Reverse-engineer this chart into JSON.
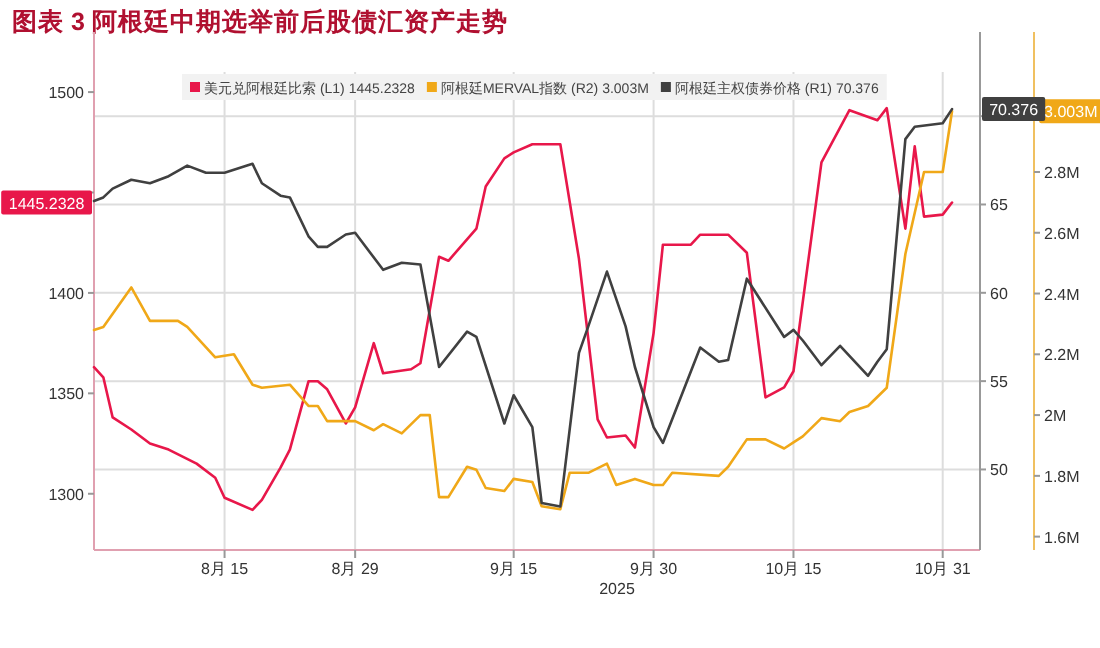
{
  "chart_data": {
    "type": "line",
    "title": "图表 3  阿根廷中期选举前后股债汇资产走势",
    "xlabel": "2025",
    "xlim": [
      "2025-08-01",
      "2025-11-04"
    ],
    "xticks": [
      {
        "value": "2025-08-15",
        "label": "8月 15"
      },
      {
        "value": "2025-08-29",
        "label": "8月 29"
      },
      {
        "value": "2025-09-15",
        "label": "9月 15"
      },
      {
        "value": "2025-09-30",
        "label": "9月 30"
      },
      {
        "value": "2025-10-15",
        "label": "10月 15"
      },
      {
        "value": "2025-10-31",
        "label": "10月 31"
      }
    ],
    "ylim": [
      1272,
      1510
    ],
    "yticks": [
      1300,
      1350,
      1400,
      {
        "value": 1450,
        "label": null
      },
      1500
    ],
    "y2lim": [
      45.44,
      72.5
    ],
    "y2ticks": [
      50,
      55,
      60,
      65,
      {
        "value": 70,
        "label": null
      }
    ],
    "y3lim": [
      1.556,
      3.129
    ],
    "y3ticks": [
      {
        "value": 1.6,
        "label": "1.6M"
      },
      {
        "value": 1.8,
        "label": "1.8M"
      },
      {
        "value": 2.0,
        "label": "2M"
      },
      {
        "value": 2.2,
        "label": "2.2M"
      },
      {
        "value": 2.4,
        "label": "2.4M"
      },
      {
        "value": 2.6,
        "label": "2.6M"
      },
      {
        "value": 2.8,
        "label": "2.8M"
      }
    ],
    "grid": true,
    "legend": "top",
    "annotations": [
      "1445.2328",
      "3.003M",
      "70.376"
    ],
    "line_style": "solid",
    "marker": "none",
    "series": [
      {
        "name": "美元兑阿根廷比索 (L1) 1445.2328",
        "color": "#e8174a",
        "axis": "y",
        "x": [
          "2025-08-01",
          "2025-08-02",
          "2025-08-03",
          "2025-08-05",
          "2025-08-07",
          "2025-08-09",
          "2025-08-12",
          "2025-08-14",
          "2025-08-15",
          "2025-08-18",
          "2025-08-19",
          "2025-08-21",
          "2025-08-22",
          "2025-08-24",
          "2025-08-25",
          "2025-08-26",
          "2025-08-28",
          "2025-08-29",
          "2025-08-31",
          "2025-09-01",
          "2025-09-04",
          "2025-09-05",
          "2025-09-07",
          "2025-09-08",
          "2025-09-11",
          "2025-09-12",
          "2025-09-14",
          "2025-09-15",
          "2025-09-17",
          "2025-09-20",
          "2025-09-22",
          "2025-09-24",
          "2025-09-25",
          "2025-09-27",
          "2025-09-28",
          "2025-09-30",
          "2025-10-01",
          "2025-10-04",
          "2025-10-05",
          "2025-10-08",
          "2025-10-10",
          "2025-10-12",
          "2025-10-14",
          "2025-10-15",
          "2025-10-18",
          "2025-10-21",
          "2025-10-24",
          "2025-10-25",
          "2025-10-27",
          "2025-10-28",
          "2025-10-29",
          "2025-10-31",
          "2025-11-01"
        ],
        "values": [
          1363,
          1358,
          1338,
          1332,
          1325,
          1322,
          1315,
          1308,
          1298,
          1292,
          1297,
          1313,
          1322,
          1356,
          1356,
          1352,
          1335,
          1343,
          1375,
          1360,
          1362,
          1365,
          1418,
          1416,
          1432,
          1453,
          1467,
          1470,
          1474,
          1474,
          1417,
          1337,
          1328,
          1329,
          1323,
          1380,
          1424,
          1424,
          1429,
          1429,
          1420,
          1348,
          1353,
          1361,
          1465,
          1491,
          1486,
          1492,
          1432,
          1473,
          1438,
          1439,
          1445
        ]
      },
      {
        "name": "阿根廷MERVAL指数 (R2) 3.003M",
        "color": "#f0a818",
        "axis": "y3",
        "x": [
          "2025-08-01",
          "2025-08-02",
          "2025-08-05",
          "2025-08-07",
          "2025-08-10",
          "2025-08-11",
          "2025-08-14",
          "2025-08-16",
          "2025-08-18",
          "2025-08-19",
          "2025-08-22",
          "2025-08-24",
          "2025-08-25",
          "2025-08-26",
          "2025-08-29",
          "2025-08-31",
          "2025-09-01",
          "2025-09-03",
          "2025-09-05",
          "2025-09-06",
          "2025-09-07",
          "2025-09-08",
          "2025-09-10",
          "2025-09-11",
          "2025-09-12",
          "2025-09-14",
          "2025-09-15",
          "2025-09-17",
          "2025-09-18",
          "2025-09-20",
          "2025-09-21",
          "2025-09-23",
          "2025-09-25",
          "2025-09-26",
          "2025-09-28",
          "2025-09-30",
          "2025-10-01",
          "2025-10-02",
          "2025-10-07",
          "2025-10-08",
          "2025-10-10",
          "2025-10-12",
          "2025-10-14",
          "2025-10-15",
          "2025-10-16",
          "2025-10-18",
          "2025-10-20",
          "2025-10-21",
          "2025-10-23",
          "2025-10-25",
          "2025-10-27",
          "2025-10-29",
          "2025-10-31",
          "2025-11-01"
        ],
        "values": [
          2.28,
          2.29,
          2.42,
          2.31,
          2.31,
          2.29,
          2.19,
          2.2,
          2.1,
          2.09,
          2.1,
          2.03,
          2.03,
          1.98,
          1.98,
          1.95,
          1.97,
          1.94,
          2.0,
          2.0,
          1.73,
          1.73,
          1.83,
          1.82,
          1.76,
          1.75,
          1.79,
          1.78,
          1.7,
          1.69,
          1.81,
          1.81,
          1.84,
          1.77,
          1.79,
          1.77,
          1.77,
          1.81,
          1.8,
          1.83,
          1.92,
          1.92,
          1.89,
          1.91,
          1.93,
          1.99,
          1.98,
          2.01,
          2.03,
          2.09,
          2.53,
          2.8,
          2.8,
          3.0
        ]
      },
      {
        "name": "阿根廷主权债券价格 (R1) 70.376",
        "color": "#404040",
        "axis": "y2",
        "x": [
          "2025-08-01",
          "2025-08-02",
          "2025-08-03",
          "2025-08-05",
          "2025-08-07",
          "2025-08-09",
          "2025-08-11",
          "2025-08-13",
          "2025-08-15",
          "2025-08-18",
          "2025-08-19",
          "2025-08-21",
          "2025-08-22",
          "2025-08-24",
          "2025-08-25",
          "2025-08-26",
          "2025-08-28",
          "2025-08-29",
          "2025-09-01",
          "2025-09-03",
          "2025-09-05",
          "2025-09-07",
          "2025-09-10",
          "2025-09-11",
          "2025-09-14",
          "2025-09-15",
          "2025-09-17",
          "2025-09-18",
          "2025-09-20",
          "2025-09-22",
          "2025-09-23",
          "2025-09-25",
          "2025-09-27",
          "2025-09-28",
          "2025-09-30",
          "2025-10-01",
          "2025-10-05",
          "2025-10-07",
          "2025-10-08",
          "2025-10-10",
          "2025-10-14",
          "2025-10-15",
          "2025-10-16",
          "2025-10-18",
          "2025-10-20",
          "2025-10-23",
          "2025-10-24",
          "2025-10-25",
          "2025-10-27",
          "2025-10-28",
          "2025-10-31",
          "2025-11-01"
        ],
        "values": [
          65.2,
          65.4,
          65.9,
          66.4,
          66.2,
          66.6,
          67.2,
          66.8,
          66.8,
          67.3,
          66.2,
          65.5,
          65.4,
          63.2,
          62.6,
          62.6,
          63.3,
          63.4,
          61.3,
          61.7,
          61.6,
          55.8,
          57.8,
          57.5,
          52.6,
          54.2,
          52.4,
          48.1,
          47.9,
          56.6,
          58.1,
          61.2,
          58.1,
          55.8,
          52.4,
          51.5,
          56.9,
          56.1,
          56.2,
          60.8,
          57.5,
          57.9,
          57.3,
          55.9,
          57.0,
          55.3,
          56.1,
          56.8,
          68.7,
          69.4,
          69.6,
          70.4
        ]
      }
    ]
  }
}
